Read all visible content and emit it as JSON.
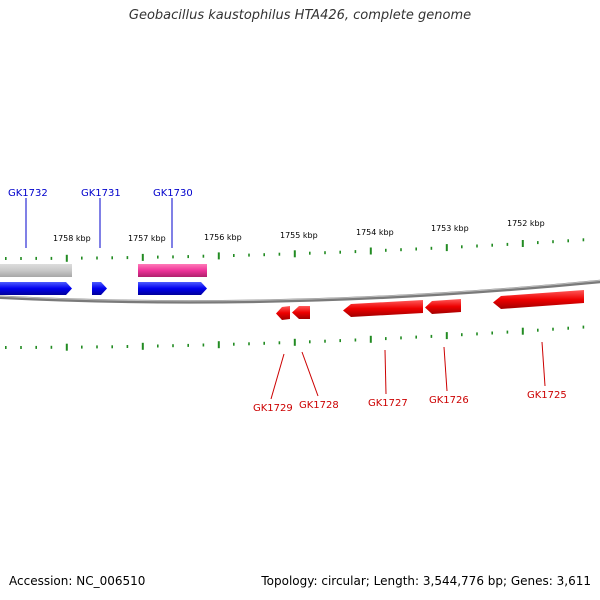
{
  "title": "Geobacillus kaustophilus HTA426, complete genome",
  "footer": {
    "accession": "Accession: NC_006510",
    "summary": "Topology: circular; Length: 3,544,776 bp; Genes: 3,611"
  },
  "colors": {
    "forward_gene": "#0000ee",
    "reverse_gene": "#ee0000",
    "rna_gene": "#ee3399",
    "pseudo_gene": "#c8c8c8",
    "tick": "#228b22",
    "backbone": "#808080"
  },
  "kbp_labels": [
    "1758 kbp",
    "1757 kbp",
    "1756 kbp",
    "1755 kbp",
    "1754 kbp",
    "1753 kbp",
    "1752 kbp"
  ],
  "genes_top": [
    {
      "name": "GK1732"
    },
    {
      "name": "GK1731"
    },
    {
      "name": "GK1730"
    }
  ],
  "genes_bottom": [
    {
      "name": "GK1729"
    },
    {
      "name": "GK1728"
    },
    {
      "name": "GK1727"
    },
    {
      "name": "GK1726"
    },
    {
      "name": "GK1725"
    }
  ]
}
